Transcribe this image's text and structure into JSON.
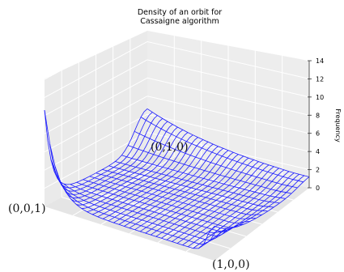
{
  "chart_data": {
    "type": "surface-wireframe",
    "title_lines": [
      "Density of an orbit for",
      "Cassaigne algorithm"
    ],
    "zlabel": "Frequency",
    "zticks": [
      "0",
      "2",
      "4",
      "6",
      "8",
      "10",
      "12",
      "14"
    ],
    "zlim": [
      0,
      14
    ],
    "corner_labels": {
      "left": "(0,0,1)",
      "top": "(0,1,0)",
      "right": "(1,0,0)"
    },
    "grid": true,
    "series_color": "#1a1aff",
    "peaks": {
      "corner_0_0_1": 10.0,
      "corner_1_0_0": 3.2,
      "corner_0_1_0": 4.0,
      "plateau": 0.6
    }
  }
}
